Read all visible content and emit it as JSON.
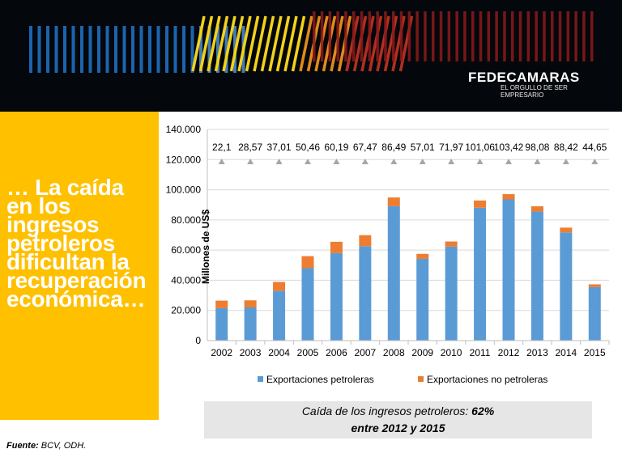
{
  "header": {
    "brand": "FEDECAMARAS",
    "tagline": "EL ORGULLO DE SER EMPRESARIO"
  },
  "side_panel": {
    "headline": "… La caída\nen los\ningresos\npetroleros\ndificultan la\nrecuperación\neconómica…"
  },
  "chart_data": {
    "type": "bar",
    "stacked": true,
    "categories": [
      "2002",
      "2003",
      "2004",
      "2005",
      "2006",
      "2007",
      "2008",
      "2009",
      "2010",
      "2011",
      "2012",
      "2013",
      "2014",
      "2015"
    ],
    "series": [
      {
        "name": "Exportaciones petroleras",
        "color": "#5b9bd5",
        "values": [
          21500,
          22000,
          32900,
          48000,
          58000,
          62600,
          89100,
          54200,
          62300,
          88100,
          93600,
          85600,
          71700,
          35500
        ]
      },
      {
        "name": "Exportaciones no petroleras",
        "color": "#ed7d31",
        "values": [
          5000,
          4700,
          6000,
          8000,
          7500,
          7300,
          5800,
          3300,
          3400,
          4800,
          3500,
          3500,
          3200,
          1800
        ]
      }
    ],
    "data_labels": [
      "22,1",
      "28,57",
      "37,01",
      "50,46",
      "60,19",
      "67,47",
      "86,49",
      "57,01",
      "71,97",
      "101,06",
      "103,42",
      "98,08",
      "88,42",
      "44,65"
    ],
    "marker_color": "#a6a6a6",
    "ylabel": "Millones de US$",
    "ylim": [
      0,
      140000
    ],
    "yticks": [
      "0",
      "20.000",
      "40.000",
      "60.000",
      "80.000",
      "100.000",
      "120.000",
      "140.000"
    ],
    "legend_position": "bottom"
  },
  "caption": {
    "line1_text": "Caída de los ingresos petroleros: ",
    "line1_value": "62%",
    "line2": "entre 2012 y 2015"
  },
  "source": {
    "label": "Fuente:",
    "text": " BCV, ODH."
  }
}
